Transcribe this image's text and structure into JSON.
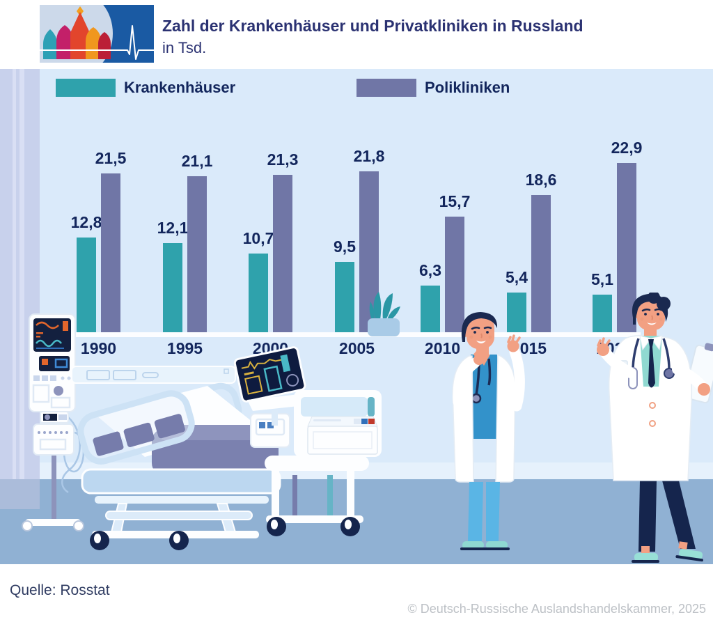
{
  "header": {
    "title": "Zahl der Krankenhäuser und Privatkliniken in Russland",
    "subtitle": "in Tsd.",
    "logo_name": "st-basils-cathedral-ecg-logo"
  },
  "chart_data": {
    "type": "bar",
    "title": "Zahl der Krankenhäuser und Privatkliniken in Russland",
    "unit": "Tsd.",
    "categories": [
      "1990",
      "1995",
      "2000",
      "2005",
      "2010",
      "2015",
      "2020"
    ],
    "series": [
      {
        "name": "Krankenhäuser",
        "color": "#2fa2ac",
        "values": [
          12.8,
          12.1,
          10.7,
          9.5,
          6.3,
          5.4,
          5.1
        ],
        "labels": [
          "12,8",
          "12,1",
          "10,7",
          "9,5",
          "6,3",
          "5,4",
          "5,1"
        ]
      },
      {
        "name": "Polikliniken",
        "color": "#7076a6",
        "values": [
          21.5,
          21.1,
          21.3,
          21.8,
          15.7,
          18.6,
          22.9
        ],
        "labels": [
          "21,5",
          "21,1",
          "21,3",
          "21,8",
          "15,7",
          "18,6",
          "22,9"
        ]
      }
    ],
    "legend_position": "top",
    "grid": false,
    "ylim": [
      0,
      24
    ],
    "value_label_format": "decimal-comma"
  },
  "scene": {
    "illustrations": [
      "iv-infusion-pump",
      "hospital-bed",
      "patient-monitor",
      "medical-trolley-printer",
      "potted-plant",
      "doctor-gesturing",
      "doctor-with-clipboard"
    ]
  },
  "footer": {
    "source": "Quelle: Rosstat",
    "copyright": "© Deutsch-Russische Auslandshandelskammer, 2025"
  },
  "colors": {
    "wall": "#daeafa",
    "floor": "#90b1d3",
    "accent_teal": "#2fa2ac",
    "accent_purple": "#7076a6",
    "label_navy": "#13265c",
    "title_navy": "#2b3272",
    "copyright_gray": "#bdc1c6"
  }
}
